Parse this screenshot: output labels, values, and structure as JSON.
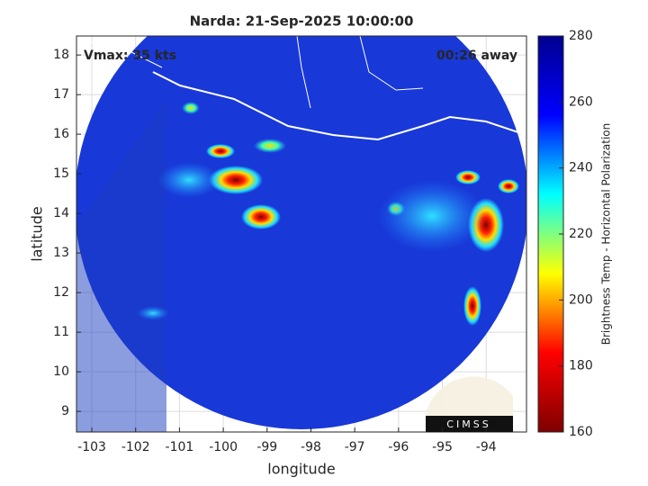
{
  "chart_data": {
    "type": "map",
    "title": "Narda: 21-Sep-2025 10:00:00",
    "xlabel": "longitude",
    "ylabel": "latitude",
    "xlim": [
      -103.35,
      -93.08
    ],
    "ylim": [
      8.48,
      18.48
    ],
    "xticks": [
      -103,
      -102,
      -101,
      -100,
      -99,
      -98,
      -97,
      -96,
      -95,
      -94
    ],
    "yticks": [
      9,
      10,
      11,
      12,
      13,
      14,
      15,
      16,
      17,
      18
    ],
    "grid": true,
    "annotations": [
      "Vmax: 35 kts",
      "00:26 away"
    ],
    "logo": "CIMSS",
    "colorbar": {
      "label": "Brightness Temp - Horizontal Polarization",
      "clim": [
        160,
        280
      ],
      "ticks": [
        160,
        180,
        200,
        220,
        240,
        260,
        280
      ],
      "colormap": [
        "#7f0000",
        "#ff0000",
        "#ffff00",
        "#00ffff",
        "#0000ff",
        "#00008f"
      ]
    }
  }
}
